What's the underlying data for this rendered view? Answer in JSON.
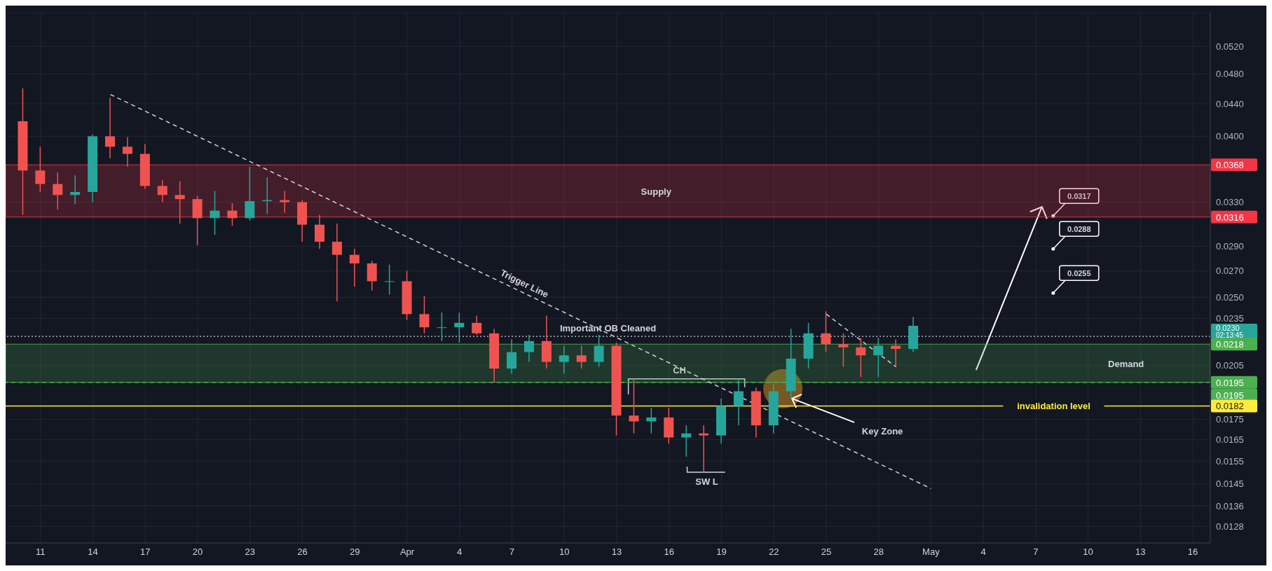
{
  "chart_data": {
    "type": "candlestick",
    "x": [
      "--03-10",
      "--03-11",
      "--03-12",
      "--03-13",
      "--03-14",
      "--03-15",
      "--03-16",
      "--03-17",
      "--03-18",
      "--03-19",
      "--03-20",
      "--03-21",
      "--03-22",
      "--03-23",
      "--03-24",
      "--03-25",
      "--03-26",
      "--03-27",
      "--03-28",
      "--03-29",
      "--03-30",
      "--03-31",
      "--04-01",
      "--04-02",
      "--04-03",
      "--04-04",
      "--04-05",
      "--04-06",
      "--04-07",
      "--04-08",
      "--04-09",
      "--04-10",
      "--04-11",
      "--04-12",
      "--04-13",
      "--04-14",
      "--04-15",
      "--04-16",
      "--04-17",
      "--04-18",
      "--04-19",
      "--04-20",
      "--04-21",
      "--04-22",
      "--04-23",
      "--04-24",
      "--04-25",
      "--04-26",
      "--04-27",
      "--04-28",
      "--04-29",
      "--04-30"
    ],
    "ohlc": [
      [
        0.0418,
        0.046,
        0.0318,
        0.0362
      ],
      [
        0.0362,
        0.0388,
        0.034,
        0.0348
      ],
      [
        0.0348,
        0.036,
        0.0323,
        0.0337
      ],
      [
        0.0337,
        0.0357,
        0.0328,
        0.034
      ],
      [
        0.034,
        0.0402,
        0.033,
        0.04
      ],
      [
        0.04,
        0.0448,
        0.0375,
        0.0388
      ],
      [
        0.0388,
        0.0399,
        0.0366,
        0.038
      ],
      [
        0.038,
        0.0391,
        0.0343,
        0.0346
      ],
      [
        0.0346,
        0.0352,
        0.033,
        0.0337
      ],
      [
        0.0337,
        0.0351,
        0.031,
        0.0333
      ],
      [
        0.0333,
        0.0336,
        0.0291,
        0.0315
      ],
      [
        0.0315,
        0.0341,
        0.03,
        0.0322
      ],
      [
        0.0322,
        0.0329,
        0.0308,
        0.0315
      ],
      [
        0.0315,
        0.0366,
        0.0313,
        0.0331
      ],
      [
        0.0331,
        0.0355,
        0.0319,
        0.0332
      ],
      [
        0.0332,
        0.0341,
        0.032,
        0.033
      ],
      [
        0.033,
        0.0332,
        0.0294,
        0.0309
      ],
      [
        0.0309,
        0.0318,
        0.0288,
        0.0294
      ],
      [
        0.0294,
        0.031,
        0.0247,
        0.0283
      ],
      [
        0.0283,
        0.0288,
        0.0258,
        0.0276
      ],
      [
        0.0276,
        0.0278,
        0.0255,
        0.0262
      ],
      [
        0.0262,
        0.0275,
        0.0252,
        0.0262
      ],
      [
        0.0262,
        0.027,
        0.0234,
        0.0238
      ],
      [
        0.0238,
        0.0251,
        0.0225,
        0.0229
      ],
      [
        0.0229,
        0.0239,
        0.022,
        0.0229
      ],
      [
        0.0229,
        0.0239,
        0.0219,
        0.0232
      ],
      [
        0.0232,
        0.0237,
        0.0224,
        0.0225
      ],
      [
        0.0225,
        0.0228,
        0.0195,
        0.0203
      ],
      [
        0.0203,
        0.0221,
        0.02,
        0.0213
      ],
      [
        0.0213,
        0.0224,
        0.0207,
        0.022
      ],
      [
        0.022,
        0.0237,
        0.0203,
        0.0207
      ],
      [
        0.0207,
        0.0217,
        0.02,
        0.0211
      ],
      [
        0.0211,
        0.0217,
        0.0203,
        0.0207
      ],
      [
        0.0207,
        0.0224,
        0.0204,
        0.0217
      ],
      [
        0.0217,
        0.0219,
        0.0167,
        0.0177
      ],
      [
        0.0177,
        0.0197,
        0.0168,
        0.0174
      ],
      [
        0.0174,
        0.0181,
        0.0168,
        0.0176
      ],
      [
        0.0176,
        0.0181,
        0.0163,
        0.0166
      ],
      [
        0.0166,
        0.0172,
        0.0157,
        0.0168
      ],
      [
        0.0168,
        0.0172,
        0.015,
        0.0167
      ],
      [
        0.0167,
        0.0186,
        0.0163,
        0.0182
      ],
      [
        0.0182,
        0.0197,
        0.0172,
        0.019
      ],
      [
        0.019,
        0.0192,
        0.0166,
        0.0172
      ],
      [
        0.0172,
        0.0194,
        0.0168,
        0.019
      ],
      [
        0.019,
        0.0228,
        0.0186,
        0.0209
      ],
      [
        0.0209,
        0.0232,
        0.0203,
        0.0225
      ],
      [
        0.0225,
        0.024,
        0.0213,
        0.0218
      ],
      [
        0.0218,
        0.0225,
        0.0204,
        0.0216
      ],
      [
        0.0216,
        0.0222,
        0.0198,
        0.0211
      ],
      [
        0.0211,
        0.0222,
        0.0198,
        0.0217
      ],
      [
        0.0217,
        0.0221,
        0.0204,
        0.0215
      ],
      [
        0.0215,
        0.0236,
        0.0213,
        0.023
      ]
    ],
    "series": [
      {
        "type": "line",
        "name": "Trigger Line",
        "color": "#d1d4dc",
        "line_style": "dashed",
        "x": [
          "--03-15",
          "--05-01"
        ],
        "values": [
          0.0452,
          0.0143
        ]
      },
      {
        "type": "line",
        "color": "#d1d4dc",
        "line_style": "dashed",
        "x": [
          "--04-25",
          "--04-29"
        ],
        "values": [
          0.0238,
          0.0204
        ]
      }
    ],
    "xlim": [
      "--03-09",
      "--05-17"
    ],
    "xticks": [
      {
        "value": "--03-11",
        "label": "11"
      },
      {
        "value": "--03-14",
        "label": "14"
      },
      {
        "value": "--03-17",
        "label": "17"
      },
      {
        "value": "--03-20",
        "label": "20"
      },
      {
        "value": "--03-23",
        "label": "23"
      },
      {
        "value": "--03-26",
        "label": "26"
      },
      {
        "value": "--03-29",
        "label": "29"
      },
      {
        "value": "--04-01",
        "label": "Apr"
      },
      {
        "value": "--04-04",
        "label": "4"
      },
      {
        "value": "--04-07",
        "label": "7"
      },
      {
        "value": "--04-10",
        "label": "10"
      },
      {
        "value": "--04-13",
        "label": "13"
      },
      {
        "value": "--04-16",
        "label": "16"
      },
      {
        "value": "--04-19",
        "label": "19"
      },
      {
        "value": "--04-22",
        "label": "22"
      },
      {
        "value": "--04-25",
        "label": "25"
      },
      {
        "value": "--04-28",
        "label": "28"
      },
      {
        "value": "--05-01",
        "label": "May"
      },
      {
        "value": "--05-04",
        "label": "4"
      },
      {
        "value": "--05-07",
        "label": "7"
      },
      {
        "value": "--05-10",
        "label": "10"
      },
      {
        "value": "--05-13",
        "label": "13"
      },
      {
        "value": "--05-16",
        "label": "16"
      }
    ],
    "ylim": [
      0.0122,
      0.0574
    ],
    "log": true,
    "yticks": [
      {
        "value": 0.0128,
        "label": "0.0128"
      },
      {
        "value": 0.0136,
        "label": "0.0136"
      },
      {
        "value": 0.0145,
        "label": "0.0145"
      },
      {
        "value": 0.0155,
        "label": "0.0155"
      },
      {
        "value": 0.0165,
        "label": "0.0165"
      },
      {
        "value": 0.0175,
        "label": "0.0175"
      },
      {
        "value": 0.0205,
        "label": "0.0205"
      },
      {
        "value": 0.0235,
        "label": "0.0235"
      },
      {
        "value": 0.025,
        "label": "0.0250"
      },
      {
        "value": 0.027,
        "label": "0.0270"
      },
      {
        "value": 0.029,
        "label": "0.0290"
      },
      {
        "value": 0.033,
        "label": "0.0330"
      },
      {
        "value": 0.04,
        "label": "0.0400"
      },
      {
        "value": 0.044,
        "label": "0.0440"
      },
      {
        "value": 0.048,
        "label": "0.0480"
      },
      {
        "value": 0.052,
        "label": "0.0520"
      }
    ],
    "grid": true,
    "bands": [
      {
        "axis": "y",
        "from": 0.0316,
        "to": 0.0368,
        "label": "Supply",
        "color": "#f23645"
      },
      {
        "axis": "y",
        "from": 0.0195,
        "to": 0.0218,
        "label": "Demand",
        "color": "#4caf50"
      }
    ],
    "ref_lines": [
      {
        "axis": "y",
        "value": 0.0223,
        "label": "Important OB Cleaned",
        "color": "#d1d4dc",
        "line_style": "dotted"
      },
      {
        "axis": "y",
        "value": 0.0195,
        "color": "#4caf50",
        "line_style": "dashed"
      },
      {
        "axis": "y",
        "value": 0.0182,
        "label": "invalidation level",
        "color": "#ffeb3b",
        "line_style": "solid"
      }
    ],
    "annotations": [
      {
        "text": "CH",
        "x": "--04-17",
        "y": 0.0197
      },
      {
        "text": "SW L",
        "x": "--04-18",
        "y": 0.015
      },
      {
        "text": "Key Zone",
        "x": "--04-23",
        "y": 0.0186
      },
      {
        "text": "0.0317",
        "x": "--05-08",
        "y": 0.0317
      },
      "0.0288",
      "0.0255",
      "0.0368",
      "0.0316",
      "0.0230",
      "0.0218",
      "0.0195",
      "0.0195",
      "0.0182",
      "02:13:45"
    ]
  }
}
